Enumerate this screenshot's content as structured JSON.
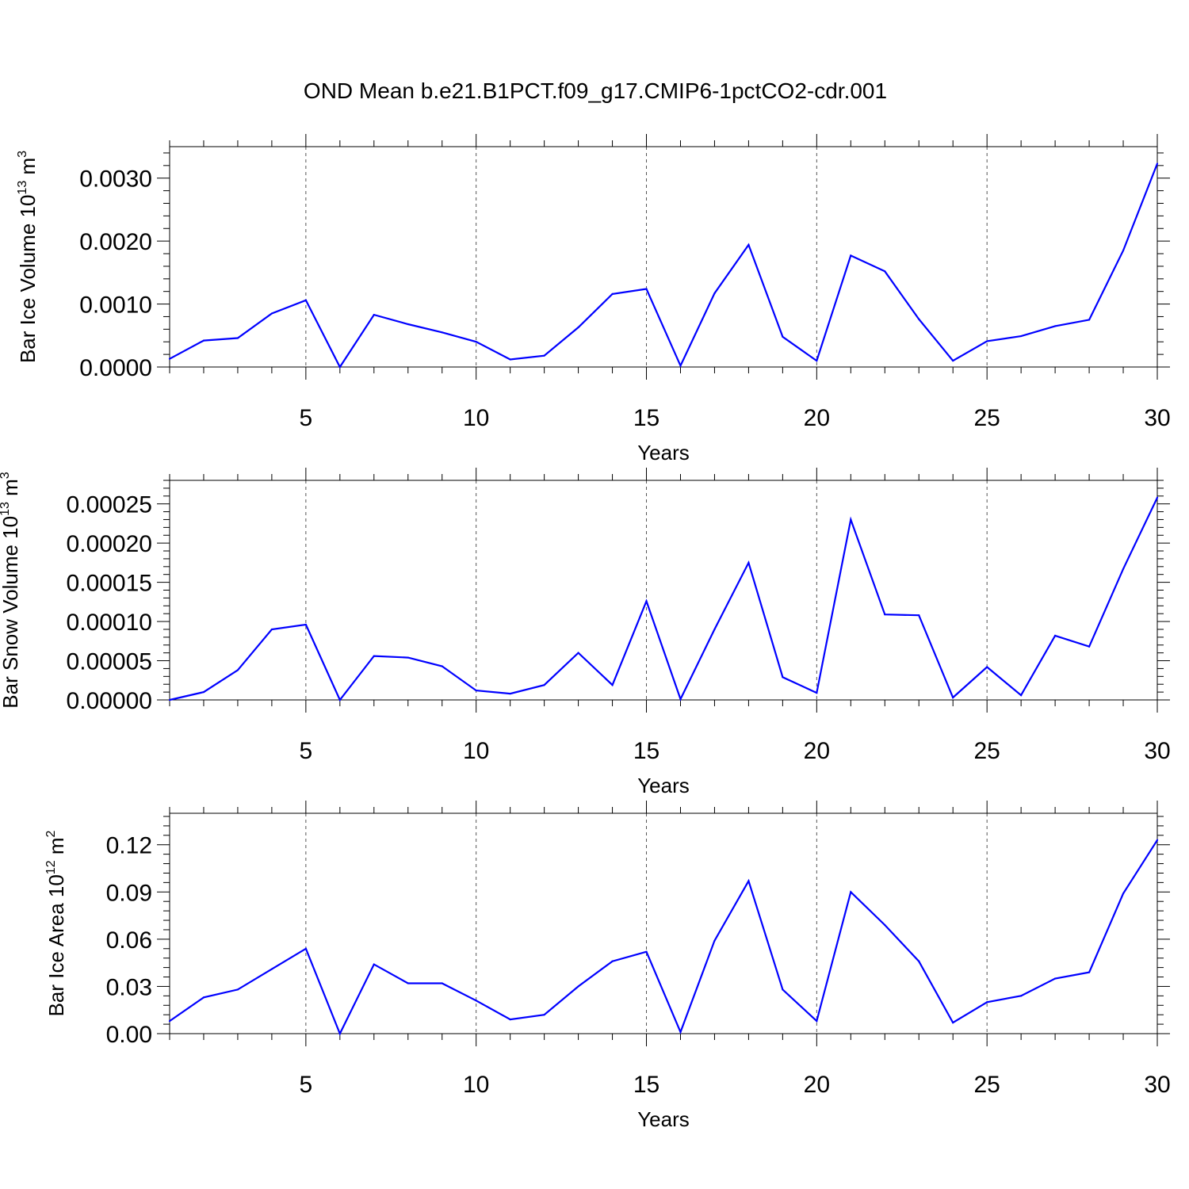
{
  "title": "OND Mean b.e21.B1PCT.f09_g17.CMIP6-1pctCO2-cdr.001",
  "colors": {
    "line": "#0000ff",
    "axis": "#000000",
    "grid": "#555555"
  },
  "chart_data": [
    {
      "type": "line",
      "xlabel": "Years",
      "ylabel": {
        "main": "Bar Ice Volume 10",
        "sup": "13",
        "unit": " m",
        "unit_sup": "3"
      },
      "xlim": [
        1,
        30
      ],
      "ylim": [
        0,
        0.0035
      ],
      "xticks": [
        5,
        10,
        15,
        20,
        25,
        30
      ],
      "xtick_labels": [
        "5",
        "10",
        "15",
        "20",
        "25",
        "30"
      ],
      "yticks": [
        0.0,
        0.001,
        0.002,
        0.003
      ],
      "ytick_labels": [
        "0.0000",
        "0.0010",
        "0.0020",
        "0.0030"
      ],
      "grid": "vertical dashed at labeled x ticks",
      "x": [
        1,
        2,
        3,
        4,
        5,
        6,
        7,
        8,
        9,
        10,
        11,
        12,
        13,
        14,
        15,
        16,
        17,
        18,
        19,
        20,
        21,
        22,
        23,
        24,
        25,
        26,
        27,
        28,
        29,
        30
      ],
      "values": [
        0.00013,
        0.00042,
        0.00046,
        0.00085,
        0.00106,
        0.0,
        0.00083,
        0.00068,
        0.00055,
        0.0004,
        0.00012,
        0.00018,
        0.00063,
        0.00116,
        0.00124,
        2e-05,
        0.00117,
        0.00194,
        0.00048,
        0.0001,
        0.00177,
        0.00152,
        0.00076,
        0.0001,
        0.00041,
        0.00049,
        0.00065,
        0.00075,
        0.00185,
        0.00323
      ]
    },
    {
      "type": "line",
      "xlabel": "Years",
      "ylabel": {
        "main": "Bar Snow Volume 10",
        "sup": "13",
        "unit": " m",
        "unit_sup": "3"
      },
      "xlim": [
        1,
        30
      ],
      "ylim": [
        0,
        0.00028
      ],
      "xticks": [
        5,
        10,
        15,
        20,
        25,
        30
      ],
      "xtick_labels": [
        "5",
        "10",
        "15",
        "20",
        "25",
        "30"
      ],
      "yticks": [
        0.0,
        5e-05,
        0.0001,
        0.00015,
        0.0002,
        0.00025
      ],
      "ytick_labels": [
        "0.00000",
        "0.00005",
        "0.00010",
        "0.00015",
        "0.00020",
        "0.00025"
      ],
      "grid": "vertical dashed at labeled x ticks",
      "x": [
        1,
        2,
        3,
        4,
        5,
        6,
        7,
        8,
        9,
        10,
        11,
        12,
        13,
        14,
        15,
        16,
        17,
        18,
        19,
        20,
        21,
        22,
        23,
        24,
        25,
        26,
        27,
        28,
        29,
        30
      ],
      "values": [
        0.0,
        1e-05,
        3.8e-05,
        9e-05,
        9.6e-05,
        0.0,
        5.6e-05,
        5.4e-05,
        4.3e-05,
        1.2e-05,
        8e-06,
        1.9e-05,
        6e-05,
        1.9e-05,
        0.000126,
        1e-06,
        9e-05,
        0.000175,
        2.9e-05,
        9e-06,
        0.00023,
        0.000109,
        0.000108,
        3e-06,
        4.2e-05,
        6e-06,
        8.2e-05,
        6.8e-05,
        0.000167,
        0.000258
      ]
    },
    {
      "type": "line",
      "xlabel": "Years",
      "ylabel": {
        "main": "Bar Ice Area 10",
        "sup": "12",
        "unit": " m",
        "unit_sup": "2"
      },
      "xlim": [
        1,
        30
      ],
      "ylim": [
        0,
        0.14
      ],
      "xticks": [
        5,
        10,
        15,
        20,
        25,
        30
      ],
      "xtick_labels": [
        "5",
        "10",
        "15",
        "20",
        "25",
        "30"
      ],
      "yticks": [
        0.0,
        0.03,
        0.06,
        0.09,
        0.12
      ],
      "ytick_labels": [
        "0.00",
        "0.03",
        "0.06",
        "0.09",
        "0.12"
      ],
      "grid": "vertical dashed at labeled x ticks",
      "x": [
        1,
        2,
        3,
        4,
        5,
        6,
        7,
        8,
        9,
        10,
        11,
        12,
        13,
        14,
        15,
        16,
        17,
        18,
        19,
        20,
        21,
        22,
        23,
        24,
        25,
        26,
        27,
        28,
        29,
        30
      ],
      "values": [
        0.008,
        0.023,
        0.028,
        0.041,
        0.054,
        0.0,
        0.044,
        0.032,
        0.032,
        0.021,
        0.009,
        0.012,
        0.03,
        0.046,
        0.052,
        0.001,
        0.059,
        0.097,
        0.028,
        0.008,
        0.09,
        0.069,
        0.046,
        0.007,
        0.02,
        0.024,
        0.035,
        0.039,
        0.089,
        0.123
      ]
    }
  ]
}
